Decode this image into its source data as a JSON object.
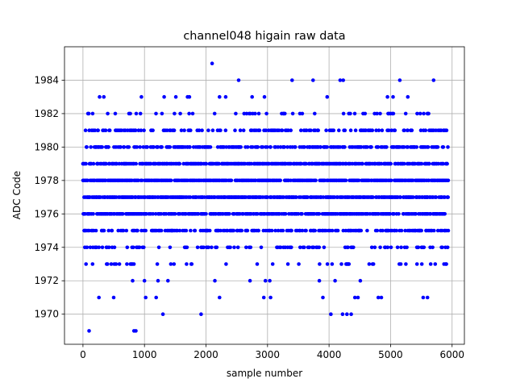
{
  "chart_data": {
    "type": "scatter",
    "title": "channel048 higain raw data",
    "xlabel": "sample number",
    "ylabel": "ADC Code",
    "xlim": [
      -300,
      6200
    ],
    "ylim": [
      1968.2,
      1986.0
    ],
    "xticks": [
      0,
      1000,
      2000,
      3000,
      4000,
      5000,
      6000
    ],
    "yticks": [
      1970,
      1972,
      1974,
      1976,
      1978,
      1980,
      1982,
      1984
    ],
    "grid": true,
    "marker_color": "#0000ff",
    "sample_range": [
      0,
      5940
    ],
    "series": [
      {
        "values_by_level": [
          {
            "y": 1985,
            "x": [
              2100
            ]
          },
          {
            "y": 1984,
            "x": [
              2530,
              3400,
              3740,
              4180,
              4230,
              5150,
              5700
            ]
          },
          {
            "y": 1983,
            "x": [
              270,
              340,
              950,
              1320,
              1510,
              1700,
              1730,
              2220,
              2320,
              2750,
              2950,
              3970,
              4950,
              5040,
              5280
            ]
          },
          {
            "y": 1971,
            "x": [
              260,
              500,
              1020,
              1190,
              2220,
              2940,
              3050,
              3900,
              4420,
              4470,
              4800,
              4850,
              5530,
              5600
            ]
          },
          {
            "y": 1970,
            "x": [
              1300,
              1920,
              4030,
              4220,
              4290,
              4360
            ]
          },
          {
            "y": 1969,
            "x": [
              100,
              830,
              860
            ]
          }
        ],
        "dense_levels": [
          1972,
          1973,
          1974,
          1975,
          1976,
          1977,
          1978,
          1979,
          1980,
          1981,
          1982
        ]
      }
    ]
  }
}
